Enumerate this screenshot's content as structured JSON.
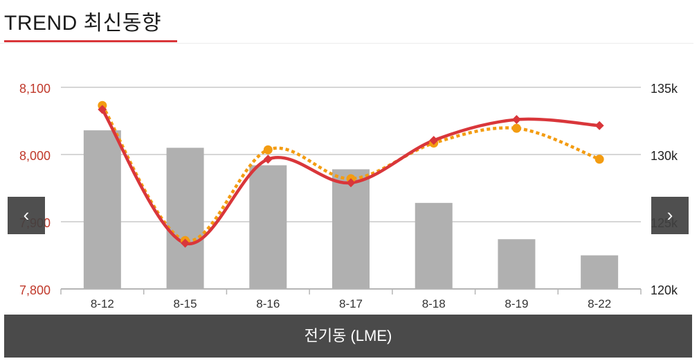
{
  "header": {
    "title": "TREND 최신동향"
  },
  "nav": {
    "prev_icon": "chevron-left-icon",
    "prev_glyph": "‹",
    "next_icon": "chevron-right-icon",
    "next_glyph": "›"
  },
  "caption": {
    "label": "전기동 (LME)"
  },
  "colors": {
    "accent": "#d9363a",
    "dotted": "#f39c12",
    "bars": "#b0b0b0",
    "grid": "#c8c8c8",
    "caption_bg": "#4a4a4a"
  },
  "chart_data": {
    "type": "bar",
    "categories": [
      "8-12",
      "8-15",
      "8-16",
      "8-17",
      "8-18",
      "8-19",
      "8-22"
    ],
    "y_left": {
      "ticks": [
        "8,100",
        "8,000",
        "7,900",
        "7,800"
      ],
      "tick_values": [
        8100,
        8000,
        7900,
        7800
      ],
      "range": [
        7800,
        8100
      ]
    },
    "y_right": {
      "ticks": [
        "135k",
        "130k",
        "125k",
        "120k"
      ],
      "tick_values": [
        135,
        130,
        125,
        120
      ],
      "range": [
        120,
        135
      ]
    },
    "grid": true,
    "series": [
      {
        "type": "bar",
        "axis": "right",
        "values": [
          131.8,
          130.5,
          129.2,
          128.9,
          126.4,
          123.7,
          122.5
        ]
      },
      {
        "type": "line",
        "style": "solid",
        "marker": "diamond",
        "axis": "left",
        "values": [
          8067,
          7868,
          7993,
          7958,
          8021,
          8052,
          8043
        ]
      },
      {
        "type": "line",
        "style": "dotted",
        "marker": "circle",
        "axis": "left",
        "values": [
          8073,
          7872,
          8007,
          7964,
          8017,
          8039,
          7993
        ]
      }
    ]
  }
}
